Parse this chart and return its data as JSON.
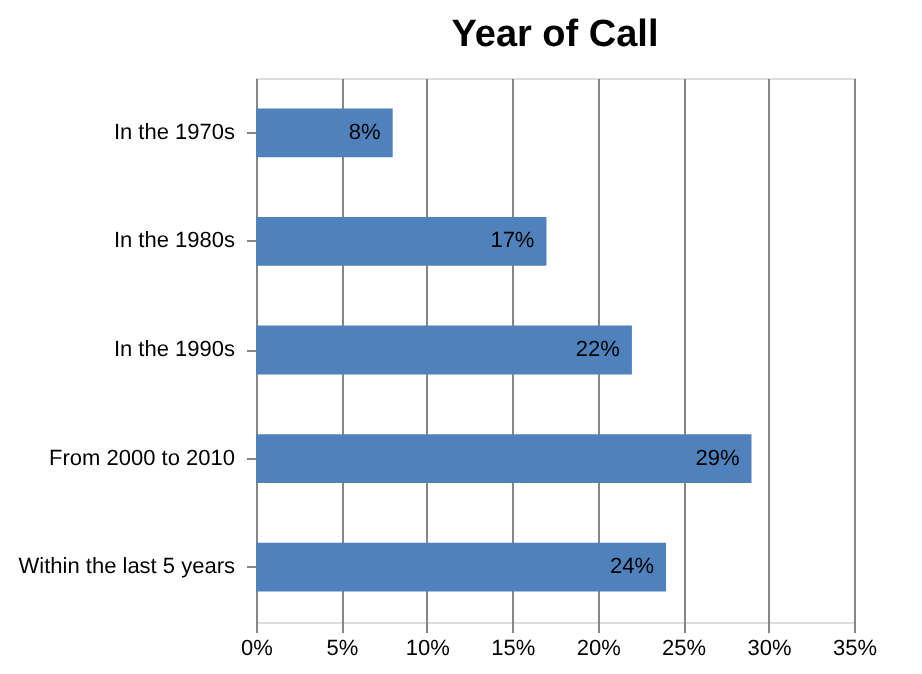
{
  "chart_data": {
    "type": "bar",
    "orientation": "horizontal",
    "title": "Year of Call",
    "categories": [
      "In the 1970s",
      "In the 1980s",
      "In the 1990s",
      "From 2000 to 2010",
      "Within the last 5 years"
    ],
    "values": [
      8,
      17,
      22,
      29,
      24
    ],
    "value_labels": [
      "8%",
      "17%",
      "22%",
      "29%",
      "24%"
    ],
    "color": "#4f81bd",
    "xlim": [
      0,
      35
    ],
    "xticks": [
      {
        "value": 0,
        "label": "0%"
      },
      {
        "value": 5,
        "label": "5%"
      },
      {
        "value": 10,
        "label": "10%"
      },
      {
        "value": 15,
        "label": "15%"
      },
      {
        "value": 20,
        "label": "20%"
      },
      {
        "value": 25,
        "label": "25%"
      },
      {
        "value": 30,
        "label": "30%"
      },
      {
        "value": 35,
        "label": "35%"
      }
    ],
    "grid": "x"
  }
}
